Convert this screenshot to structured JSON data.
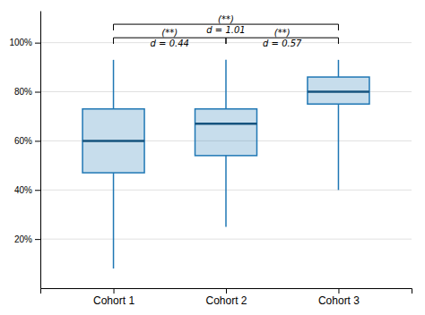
{
  "chart_data": {
    "type": "box",
    "categories": [
      "Cohort 1",
      "Cohort 2",
      "Cohort 3"
    ],
    "values": [
      {
        "whislo": 0.08,
        "q1": 0.47,
        "med": 0.6,
        "q3": 0.73,
        "whishi": 0.93
      },
      {
        "whislo": 0.25,
        "q1": 0.54,
        "med": 0.67,
        "q3": 0.73,
        "whishi": 0.93
      },
      {
        "whislo": 0.4,
        "q1": 0.75,
        "med": 0.8,
        "q3": 0.86,
        "whishi": 0.93
      }
    ],
    "ylim": [
      0.0,
      1.13
    ],
    "yticks": [
      {
        "value": 0.2,
        "label": "20%"
      },
      {
        "value": 0.4,
        "label": "40%"
      },
      {
        "value": 0.6,
        "label": "60%"
      },
      {
        "value": 0.8,
        "label": "80%"
      },
      {
        "value": 1.0,
        "label": "100%"
      }
    ],
    "grid": true,
    "annotations": [
      {
        "from": "Cohort 1",
        "to": "Cohort 2",
        "y": 1.02,
        "label_top": "(**)",
        "label_mid": "d = 0.44"
      },
      {
        "from": "Cohort 2",
        "to": "Cohort 3",
        "y": 1.02,
        "label_top": "(**)",
        "label_mid": "d = 0.57"
      },
      {
        "from": "Cohort 1",
        "to": "Cohort 3",
        "y": 1.075,
        "label_top": "(**)",
        "label_mid": "d = 1.01"
      }
    ]
  }
}
